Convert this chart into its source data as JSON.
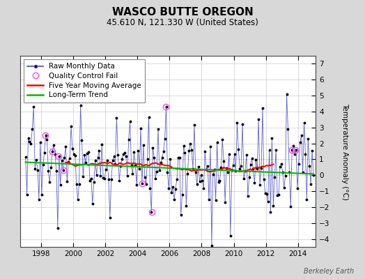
{
  "title": "WASCO BUTTE OREGON",
  "subtitle": "45.610 N, 121.330 W (United States)",
  "ylabel": "Temperature Anomaly (°C)",
  "watermark": "Berkeley Earth",
  "ylim": [
    -4.5,
    7.5
  ],
  "yticks": [
    -4,
    -3,
    -2,
    -1,
    0,
    1,
    2,
    3,
    4,
    5,
    6,
    7
  ],
  "start_year": 1996.7,
  "end_year": 2015.1,
  "xticks": [
    1998,
    2000,
    2002,
    2004,
    2006,
    2008,
    2010,
    2012,
    2014
  ],
  "raw_color": "#4444cc",
  "dot_color": "#000000",
  "qc_color": "#ff44ff",
  "moving_avg_color": "#ff0000",
  "trend_color": "#00bb00",
  "bg_color": "#d8d8d8",
  "plot_bg_color": "#ffffff",
  "legend_fontsize": 7.5,
  "title_fontsize": 11,
  "subtitle_fontsize": 8.5,
  "tick_fontsize": 7.5,
  "ylabel_fontsize": 7.5
}
